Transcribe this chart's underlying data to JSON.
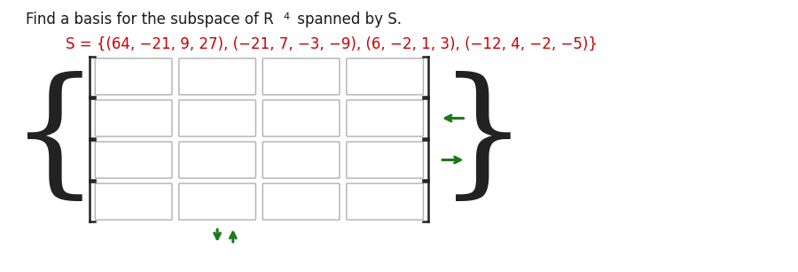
{
  "title_text": "Find a basis for the subspace of R",
  "title_superscript": "4",
  "title_suffix": " spanned by S.",
  "set_text": "S = {(64, −21, 9, 27), (−21, 7, −3, −9), (6, −2, 1, 3), (−12, 4, −2, −5)}",
  "title_color": "#1a1a1a",
  "set_text_color": "#cc0000",
  "background_color": "#ffffff",
  "grid_rows": 4,
  "grid_cols": 4,
  "box_facecolor": "#ffffff",
  "box_edgecolor": "#b0b0b0",
  "bracket_color": "#222222",
  "curly_color": "#222222",
  "arrow_color": "#1a7a1a",
  "title_fontsize": 12,
  "set_fontsize": 12
}
